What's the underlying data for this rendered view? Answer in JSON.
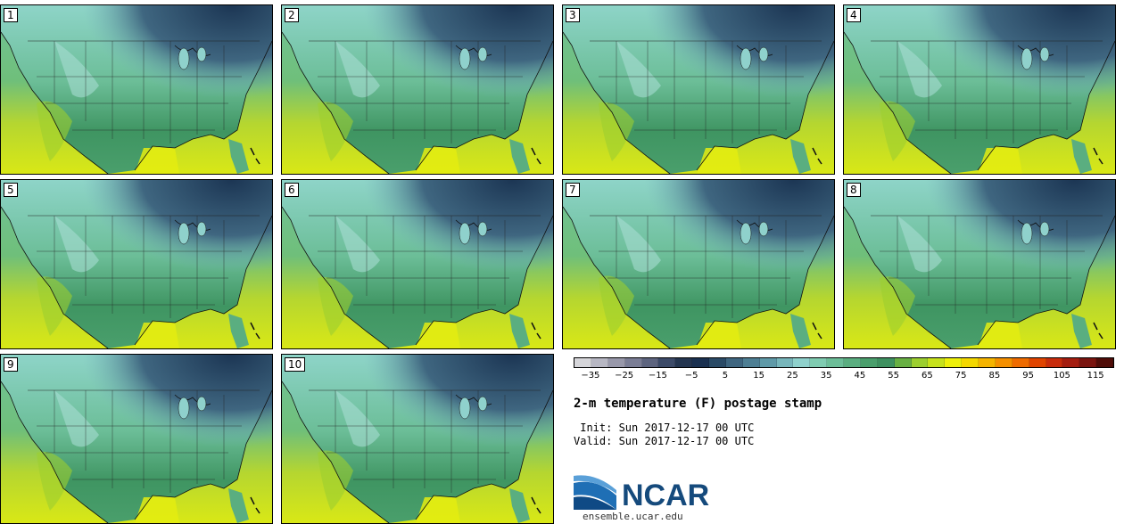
{
  "colors": {
    "palette": [
      "#d6d6da",
      "#b7b7c3",
      "#9898aa",
      "#7a7d95",
      "#5d647f",
      "#3c4a68",
      "#243550",
      "#1a3050",
      "#2a4a66",
      "#3f6680",
      "#4e7f94",
      "#5f9aa8",
      "#77b6bb",
      "#8fd1cc",
      "#7fccb1",
      "#6cbe98",
      "#5aae80",
      "#4a9f6c",
      "#3e9160",
      "#68b043",
      "#9ccf2f",
      "#c7e21c",
      "#eef00a",
      "#f4d800",
      "#f5b400",
      "#f48f00",
      "#ee6b00",
      "#e04400",
      "#c82c0c",
      "#a41d10",
      "#7a140f",
      "#4f0c08"
    ],
    "ocean_north": "#72c39a",
    "ocean_south": "#d9e816",
    "land_warm": "#3f9562",
    "land_cold": "#8ed4c8",
    "arctic": "#1c3654"
  },
  "panels": [
    {
      "id": "1"
    },
    {
      "id": "2"
    },
    {
      "id": "3"
    },
    {
      "id": "4"
    },
    {
      "id": "5"
    },
    {
      "id": "6"
    },
    {
      "id": "7"
    },
    {
      "id": "8"
    },
    {
      "id": "9"
    },
    {
      "id": "10"
    }
  ],
  "colorbar": {
    "labels": [
      "−35",
      "−25",
      "−15",
      "−5",
      "5",
      "15",
      "25",
      "35",
      "45",
      "55",
      "65",
      "75",
      "85",
      "95",
      "105",
      "115"
    ]
  },
  "title": "2-m temperature (F) postage stamp",
  "init": " Init: Sun 2017-12-17 00 UTC",
  "valid": "Valid: Sun 2017-12-17 00 UTC",
  "logo_text": "NCAR",
  "site": "ensemble.ucar.edu"
}
